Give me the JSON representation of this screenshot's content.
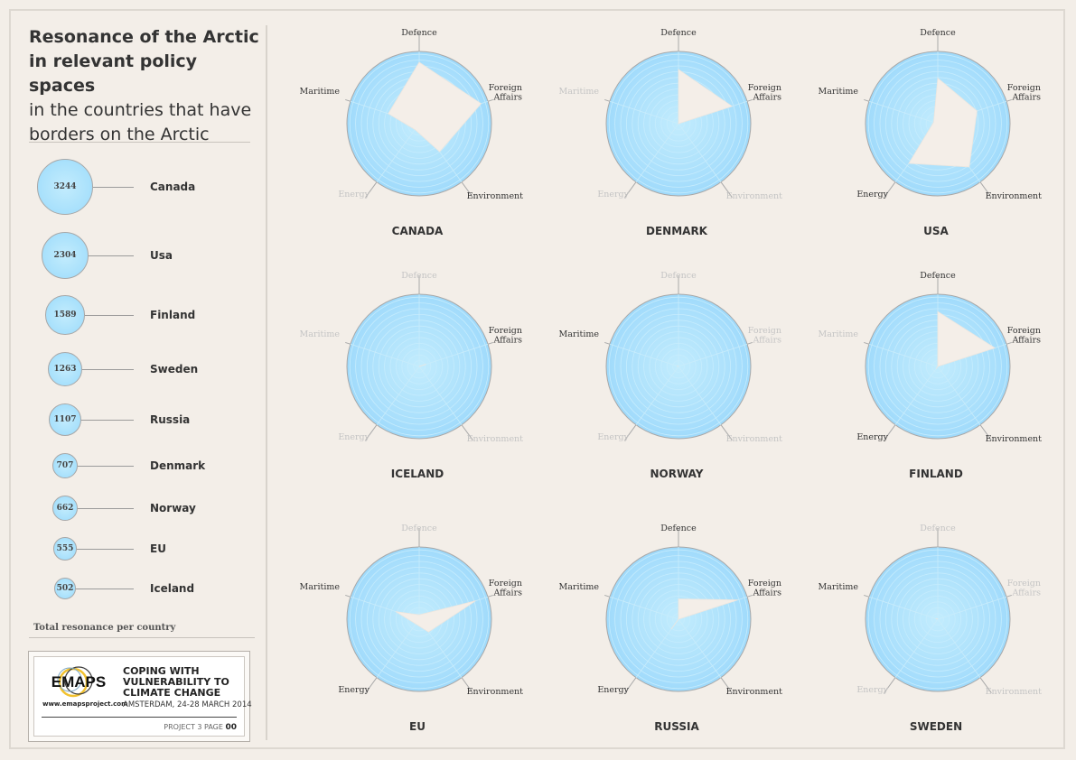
{
  "header": {
    "title_bold": "Resonance of the Arctic in relevant policy spaces",
    "title_light": "in the countries that have borders on the Arctic"
  },
  "legend": {
    "caption": "Total resonance per country",
    "items": [
      {
        "name": "Canada",
        "value": 3244
      },
      {
        "name": "Usa",
        "value": 2304
      },
      {
        "name": "Finland",
        "value": 1589
      },
      {
        "name": "Sweden",
        "value": 1263
      },
      {
        "name": "Russia",
        "value": 1107
      },
      {
        "name": "Denmark",
        "value": 707
      },
      {
        "name": "Norway",
        "value": 662
      },
      {
        "name": "EU",
        "value": 555
      },
      {
        "name": "Iceland",
        "value": 502
      }
    ]
  },
  "footer": {
    "logo_text": "EMAPS",
    "url": "www.emapsproject.com",
    "headline": "COPING WITH VULNERABILITY TO CLIMATE CHANGE",
    "subline": "AMSTERDAM, 24-28 MARCH 2014",
    "page_label": "PROJECT 3 PAGE",
    "page_number": "00"
  },
  "colors": {
    "background": "#f3eee8",
    "radar_fill": "#a9dffc",
    "radar_border": "#a8a8a8",
    "polygon_fill": "#f4eee8",
    "label_active": "#333333",
    "label_inactive": "#c4c4c4"
  },
  "chart_data": {
    "type": "radar",
    "axes": [
      "Defence",
      "Foreign Affairs",
      "Environment",
      "Energy",
      "Maritime"
    ],
    "axis_labels": [
      "Defence",
      "Foreign\nAffairs",
      "Environment",
      "Energy",
      "Maritime"
    ],
    "rmax": 1.0,
    "charts": [
      {
        "title": "CANADA",
        "values": [
          0.85,
          0.9,
          0.48,
          0.1,
          0.45
        ],
        "active": [
          true,
          true,
          true,
          false,
          true
        ]
      },
      {
        "title": "DENMARK",
        "values": [
          0.75,
          0.78,
          0.0,
          0.0,
          0.0
        ],
        "active": [
          true,
          true,
          false,
          false,
          false
        ]
      },
      {
        "title": "USA",
        "values": [
          0.63,
          0.57,
          0.74,
          0.68,
          0.06
        ],
        "active": [
          true,
          true,
          true,
          true,
          true
        ]
      },
      {
        "title": "ICELAND",
        "values": [
          0.0,
          0.1,
          0.0,
          0.0,
          0.0
        ],
        "active": [
          false,
          true,
          false,
          false,
          false
        ]
      },
      {
        "title": "NORWAY",
        "values": [
          0.0,
          0.0,
          0.0,
          0.0,
          0.02
        ],
        "active": [
          false,
          false,
          false,
          false,
          true
        ]
      },
      {
        "title": "FINLAND",
        "values": [
          0.76,
          0.83,
          0.0,
          0.04,
          0.0
        ],
        "active": [
          true,
          true,
          true,
          true,
          false
        ]
      },
      {
        "title": "EU",
        "values": [
          0.06,
          0.82,
          0.22,
          0.08,
          0.34
        ],
        "active": [
          false,
          true,
          true,
          true,
          true
        ]
      },
      {
        "title": "RUSSIA",
        "values": [
          0.28,
          0.86,
          0.0,
          0.17,
          0.0
        ],
        "active": [
          true,
          true,
          true,
          true,
          true
        ]
      },
      {
        "title": "SWEDEN",
        "values": [
          0.0,
          0.0,
          0.0,
          0.0,
          0.03
        ],
        "active": [
          false,
          false,
          false,
          false,
          true
        ]
      }
    ]
  }
}
